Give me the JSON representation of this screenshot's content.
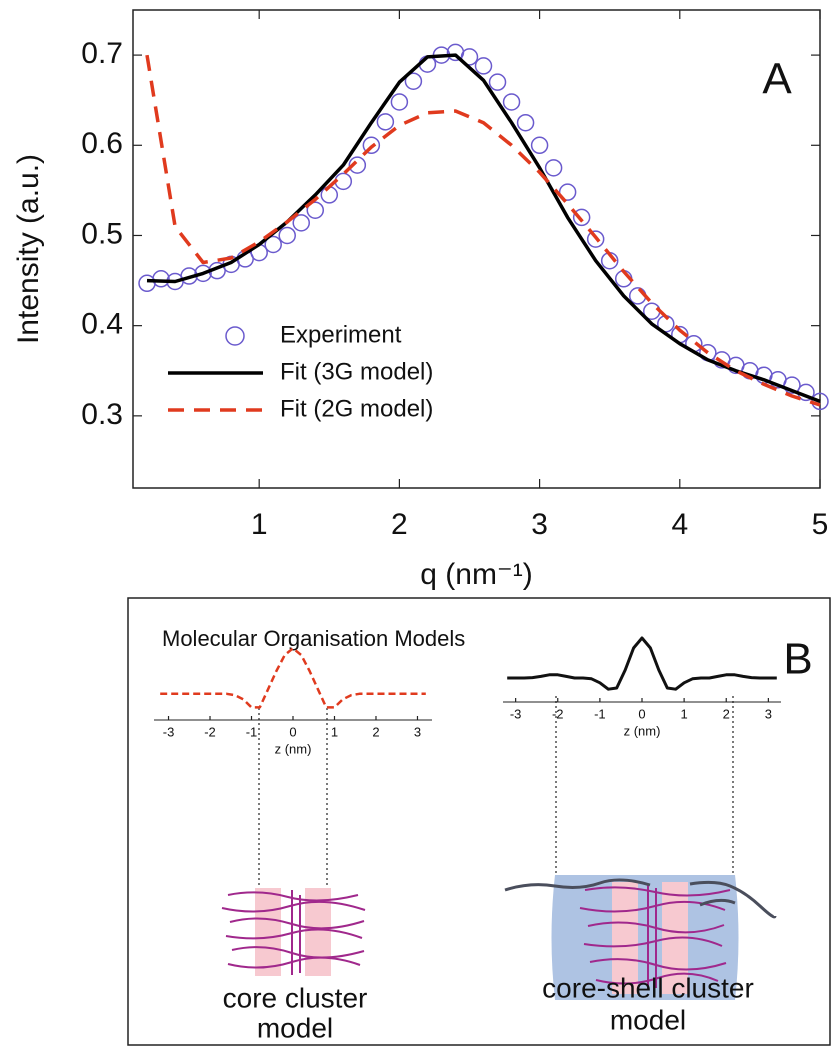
{
  "chart_data": [
    {
      "type": "line",
      "xlabel": "q (nm⁻¹)",
      "ylabel": "Intensity (a.u.)",
      "annotations": [
        "A"
      ],
      "xlim": [
        0.1,
        5
      ],
      "ylim": [
        0.22,
        0.75
      ],
      "xticks": [
        1,
        2,
        3,
        4,
        5
      ],
      "yticks": [
        0.3,
        0.4,
        0.5,
        0.6,
        0.7
      ],
      "box": true,
      "legend": "lower left",
      "series": [
        {
          "name": "Experiment",
          "color": "#6a5acd",
          "style": "markers",
          "x": [
            0.2,
            0.3,
            0.4,
            0.5,
            0.6,
            0.7,
            0.8,
            0.9,
            1.0,
            1.1,
            1.2,
            1.3,
            1.4,
            1.5,
            1.6,
            1.7,
            1.8,
            1.9,
            2.0,
            2.1,
            2.2,
            2.3,
            2.4,
            2.5,
            2.6,
            2.7,
            2.8,
            2.9,
            3.0,
            3.1,
            3.2,
            3.3,
            3.4,
            3.5,
            3.6,
            3.7,
            3.8,
            3.9,
            4.0,
            4.1,
            4.2,
            4.3,
            4.4,
            4.5,
            4.6,
            4.7,
            4.8,
            4.9,
            5.0
          ],
          "values": [
            0.447,
            0.452,
            0.449,
            0.455,
            0.458,
            0.461,
            0.468,
            0.474,
            0.481,
            0.49,
            0.5,
            0.514,
            0.528,
            0.545,
            0.56,
            0.578,
            0.6,
            0.626,
            0.648,
            0.671,
            0.69,
            0.7,
            0.703,
            0.698,
            0.688,
            0.67,
            0.648,
            0.625,
            0.6,
            0.575,
            0.548,
            0.52,
            0.496,
            0.472,
            0.452,
            0.433,
            0.416,
            0.402,
            0.39,
            0.38,
            0.37,
            0.362,
            0.356,
            0.35,
            0.345,
            0.34,
            0.334,
            0.326,
            0.316
          ]
        },
        {
          "name": "Fit (3G model)",
          "color": "#000000",
          "style": "solid",
          "x": [
            0.2,
            0.4,
            0.6,
            0.8,
            1.0,
            1.2,
            1.4,
            1.6,
            1.8,
            2.0,
            2.2,
            2.4,
            2.6,
            2.8,
            3.0,
            3.2,
            3.4,
            3.6,
            3.8,
            4.0,
            4.2,
            4.4,
            4.6,
            4.8,
            5.0
          ],
          "values": [
            0.45,
            0.449,
            0.458,
            0.47,
            0.49,
            0.515,
            0.545,
            0.578,
            0.625,
            0.67,
            0.698,
            0.7,
            0.672,
            0.625,
            0.575,
            0.52,
            0.472,
            0.433,
            0.402,
            0.38,
            0.362,
            0.35,
            0.34,
            0.328,
            0.316
          ]
        },
        {
          "name": "Fit (2G model)",
          "color": "#e03a1e",
          "style": "dashed",
          "x": [
            0.2,
            0.4,
            0.6,
            0.8,
            1.0,
            1.2,
            1.4,
            1.6,
            1.8,
            2.0,
            2.2,
            2.4,
            2.6,
            2.8,
            3.0,
            3.2,
            3.4,
            3.6,
            3.8,
            4.0,
            4.2,
            4.4,
            4.6,
            4.8,
            5.0
          ],
          "values": [
            0.7,
            0.51,
            0.47,
            0.475,
            0.493,
            0.515,
            0.54,
            0.568,
            0.598,
            0.622,
            0.636,
            0.638,
            0.625,
            0.6,
            0.57,
            0.535,
            0.498,
            0.46,
            0.425,
            0.395,
            0.37,
            0.35,
            0.335,
            0.322,
            0.312
          ]
        }
      ]
    },
    {
      "type": "line",
      "xlabel": "z (nm)",
      "xlim": [
        -3.35,
        3.35
      ],
      "ylim": [
        -0.4,
        1.05
      ],
      "xticks": [
        -3,
        -2,
        -1,
        0,
        1,
        2,
        3
      ],
      "series": [
        {
          "color": "#e03a1e",
          "style": "dashed",
          "x": [
            -3.2,
            -3.0,
            -2.8,
            -2.6,
            -2.4,
            -2.2,
            -2.0,
            -1.8,
            -1.6,
            -1.4,
            -1.2,
            -1.0,
            -0.8,
            -0.6,
            -0.4,
            -0.2,
            0,
            0.2,
            0.4,
            0.6,
            0.8,
            1.0,
            1.2,
            1.4,
            1.6,
            1.8,
            2.0,
            2.2,
            2.4,
            2.6,
            2.8,
            3.0,
            3.2
          ],
          "values": [
            0,
            0,
            0,
            0,
            0,
            0,
            0,
            0,
            0,
            -0.03,
            -0.12,
            -0.3,
            -0.3,
            0.1,
            0.5,
            0.85,
            1.0,
            0.85,
            0.5,
            0.1,
            -0.3,
            -0.3,
            -0.12,
            -0.03,
            0,
            0,
            0,
            0,
            0,
            0,
            0,
            0,
            0
          ]
        }
      ]
    },
    {
      "type": "line",
      "xlabel": "z (nm)",
      "xlim": [
        -3.3,
        3.3
      ],
      "ylim": [
        -0.4,
        1.05
      ],
      "xticks": [
        -3,
        -2,
        -1,
        0,
        1,
        2,
        3
      ],
      "series": [
        {
          "color": "#111111",
          "style": "solid",
          "x": [
            -3.2,
            -3.0,
            -2.8,
            -2.6,
            -2.4,
            -2.2,
            -2.0,
            -1.8,
            -1.6,
            -1.4,
            -1.2,
            -1.0,
            -0.8,
            -0.6,
            -0.4,
            -0.2,
            0,
            0.2,
            0.4,
            0.6,
            0.8,
            1.0,
            1.2,
            1.4,
            1.6,
            1.8,
            2.0,
            2.2,
            2.4,
            2.6,
            2.8,
            3.0,
            3.2
          ],
          "values": [
            0,
            0,
            0,
            0.01,
            0.04,
            0.08,
            0.08,
            0.04,
            0,
            0,
            -0.02,
            -0.12,
            -0.28,
            -0.25,
            0.2,
            0.75,
            1.0,
            0.75,
            0.2,
            -0.25,
            -0.28,
            -0.12,
            -0.02,
            0,
            0,
            0.04,
            0.08,
            0.08,
            0.04,
            0.01,
            0,
            0,
            0
          ]
        }
      ]
    }
  ],
  "panel_b": {
    "title": "Molecular Organisation Models",
    "label": "B",
    "models": [
      {
        "caption": [
          "core cluster",
          "model"
        ]
      },
      {
        "caption": [
          "core-shell cluster",
          "model"
        ]
      }
    ]
  }
}
